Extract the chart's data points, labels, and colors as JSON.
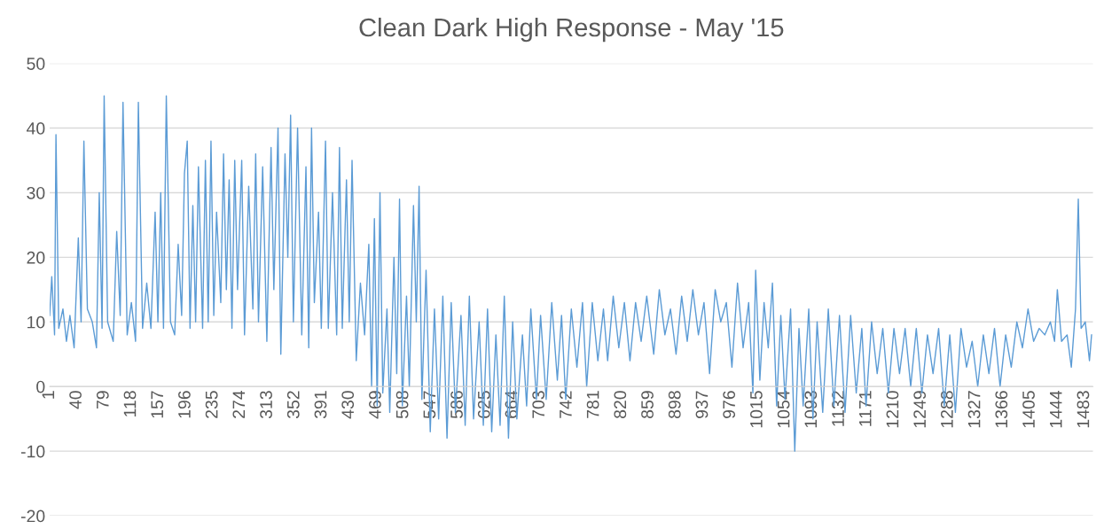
{
  "chart_data": {
    "type": "line",
    "title": "Clean Dark High Response - May '15",
    "xlim": [
      1,
      1495
    ],
    "xticks": [
      1,
      40,
      79,
      118,
      157,
      196,
      235,
      274,
      313,
      352,
      391,
      430,
      469,
      508,
      547,
      586,
      625,
      664,
      703,
      742,
      781,
      820,
      859,
      898,
      937,
      976,
      1015,
      1054,
      1093,
      1132,
      1171,
      1210,
      1249,
      1288,
      1327,
      1366,
      1405,
      1444,
      1483
    ],
    "ylim": [
      -20,
      50
    ],
    "yticks": [
      -20,
      -10,
      0,
      10,
      20,
      30,
      40,
      50
    ],
    "grid": "y",
    "legend": false,
    "marker": "none",
    "line_style": "solid",
    "series": [
      {
        "color": "#5b9bd5",
        "x": [
          1,
          4,
          8,
          10,
          14,
          20,
          25,
          30,
          36,
          42,
          46,
          50,
          55,
          62,
          68,
          72,
          76,
          79,
          84,
          92,
          97,
          102,
          106,
          112,
          118,
          124,
          128,
          134,
          140,
          146,
          152,
          156,
          160,
          164,
          168,
          174,
          180,
          185,
          190,
          194,
          198,
          202,
          206,
          210,
          214,
          220,
          224,
          228,
          232,
          236,
          240,
          246,
          250,
          254,
          258,
          262,
          266,
          270,
          276,
          280,
          286,
          292,
          296,
          300,
          306,
          312,
          318,
          322,
          328,
          332,
          338,
          342,
          346,
          350,
          356,
          362,
          368,
          372,
          376,
          380,
          386,
          390,
          396,
          400,
          406,
          412,
          416,
          420,
          426,
          430,
          434,
          440,
          446,
          452,
          458,
          462,
          466,
          470,
          474,
          478,
          484,
          488,
          494,
          498,
          502,
          506,
          512,
          516,
          522,
          526,
          530,
          534,
          540,
          546,
          552,
          558,
          564,
          570,
          576,
          582,
          590,
          596,
          602,
          608,
          616,
          622,
          628,
          634,
          640,
          646,
          652,
          658,
          664,
          670,
          678,
          684,
          690,
          698,
          704,
          712,
          720,
          728,
          734,
          740,
          748,
          756,
          764,
          770,
          778,
          786,
          794,
          800,
          808,
          816,
          824,
          832,
          840,
          848,
          856,
          866,
          874,
          882,
          890,
          898,
          906,
          914,
          922,
          930,
          938,
          946,
          954,
          962,
          970,
          978,
          986,
          994,
          1002,
          1008,
          1012,
          1018,
          1024,
          1030,
          1036,
          1042,
          1048,
          1054,
          1062,
          1068,
          1074,
          1080,
          1088,
          1094,
          1100,
          1108,
          1116,
          1124,
          1132,
          1140,
          1148,
          1156,
          1164,
          1170,
          1178,
          1186,
          1194,
          1202,
          1210,
          1218,
          1226,
          1234,
          1242,
          1250,
          1258,
          1266,
          1274,
          1282,
          1290,
          1298,
          1306,
          1314,
          1322,
          1330,
          1338,
          1346,
          1354,
          1362,
          1370,
          1378,
          1386,
          1394,
          1402,
          1410,
          1418,
          1426,
          1434,
          1440,
          1444,
          1450,
          1458,
          1464,
          1470,
          1474,
          1478,
          1484,
          1490,
          1493
        ],
        "values": [
          11,
          17,
          8,
          39,
          9,
          12,
          7,
          11,
          6,
          23,
          10,
          38,
          12,
          10,
          6,
          30,
          9,
          45,
          10,
          7,
          24,
          11,
          44,
          8,
          13,
          7,
          44,
          9,
          16,
          9,
          27,
          10,
          30,
          9,
          45,
          10,
          8,
          22,
          11,
          33,
          38,
          9,
          28,
          10,
          34,
          9,
          35,
          10,
          38,
          11,
          27,
          13,
          36,
          15,
          32,
          9,
          35,
          15,
          35,
          8,
          31,
          12,
          36,
          10,
          34,
          7,
          37,
          15,
          40,
          5,
          36,
          20,
          42,
          10,
          40,
          8,
          34,
          6,
          40,
          13,
          27,
          9,
          38,
          9,
          30,
          8,
          37,
          9,
          32,
          10,
          35,
          4,
          16,
          8,
          22,
          0,
          26,
          -3,
          30,
          -1,
          12,
          -4,
          20,
          2,
          29,
          -3,
          14,
          0,
          28,
          10,
          31,
          -2,
          18,
          -7,
          12,
          -5,
          14,
          -8,
          13,
          -4,
          11,
          -6,
          14,
          -5,
          10,
          -6,
          12,
          -7,
          8,
          -6,
          14,
          -8,
          10,
          -5,
          8,
          -3,
          12,
          -2,
          11,
          -2,
          13,
          1,
          11,
          -2,
          12,
          3,
          13,
          0,
          13,
          4,
          12,
          4,
          14,
          6,
          13,
          4,
          13,
          7,
          14,
          5,
          15,
          8,
          12,
          5,
          14,
          7,
          15,
          8,
          13,
          2,
          15,
          10,
          13,
          3,
          16,
          6,
          13,
          -1,
          18,
          1,
          13,
          6,
          16,
          -3,
          11,
          -2,
          12,
          -10,
          9,
          -3,
          12,
          -5,
          10,
          -4,
          12,
          -3,
          11,
          -4,
          11,
          -1,
          9,
          -3,
          10,
          2,
          9,
          -1,
          9,
          2,
          9,
          0,
          9,
          -1,
          8,
          2,
          9,
          -3,
          8,
          -4,
          9,
          3,
          7,
          0,
          8,
          2,
          9,
          0,
          8,
          3,
          10,
          6,
          12,
          7,
          9,
          8,
          10,
          7,
          15,
          7,
          8,
          3,
          12,
          29,
          9,
          10,
          4,
          8
        ]
      }
    ]
  }
}
